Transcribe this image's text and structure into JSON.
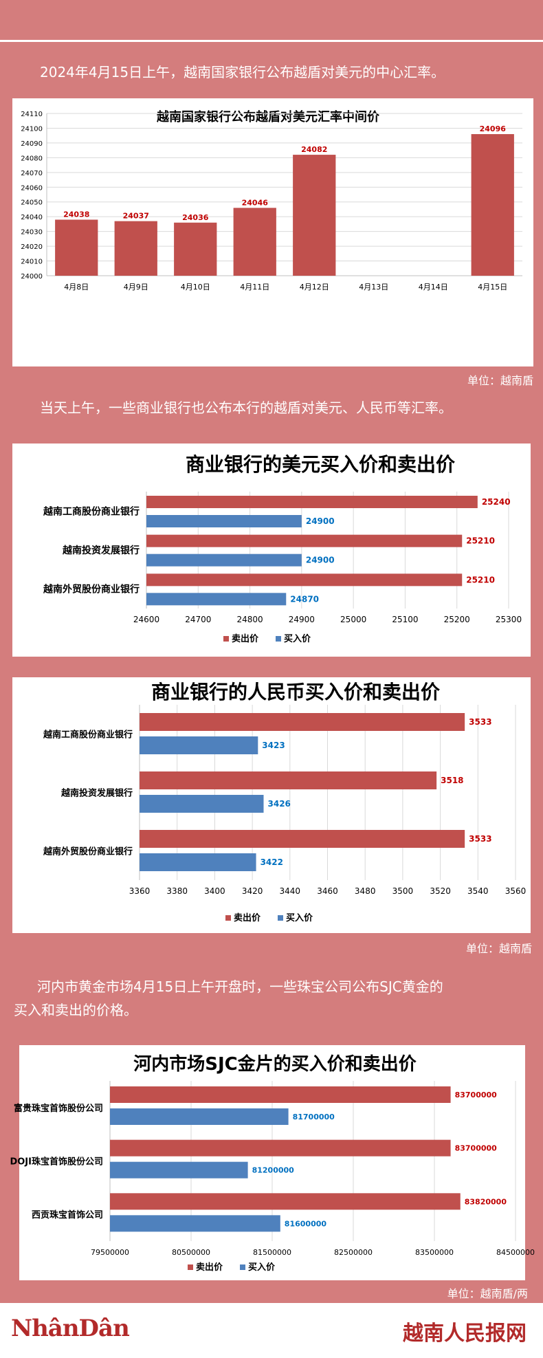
{
  "texts": {
    "intro": "2024年4月15日上午，越南国家银行公布越盾对美元的中心汇率。",
    "para2": "当天上午，一些商业银行也公布本行的越盾对美元、人民币等汇率。",
    "para3_line1": "河内市黄金市场4月15日上午开盘时，一些珠宝公司公布SJC黄金的",
    "para3_line2": "买入和卖出的价格。",
    "unit1": "单位：越南盾",
    "unit2": "单位：越南盾",
    "unit3": "单位：越南盾/两",
    "logo_left": "NhânDân",
    "logo_right": "越南人民报网"
  },
  "colors": {
    "sell": "#c0504d",
    "buy": "#4f81bd",
    "background": "#d47d7d",
    "sell_label": "#c00000",
    "buy_label": "#0070c0"
  },
  "chart_data": [
    {
      "type": "bar",
      "title": "越南国家银行公布越盾对美元汇率中间价",
      "categories": [
        "4月8日",
        "4月9日",
        "4月10日",
        "4月11日",
        "4月12日",
        "4月13日",
        "4月14日",
        "4月15日"
      ],
      "values": [
        24038,
        24037,
        24036,
        24046,
        24082,
        null,
        null,
        24096
      ],
      "ylim": [
        24000,
        24110
      ],
      "yticks": [
        24000,
        24010,
        24020,
        24030,
        24040,
        24050,
        24060,
        24070,
        24080,
        24090,
        24100,
        24110
      ],
      "grid": true
    },
    {
      "type": "bar",
      "orientation": "horizontal",
      "title": "商业银行的美元买入价和卖出价",
      "categories": [
        "越南工商股份商业银行",
        "越南投资发展银行",
        "越南外贸股份商业银行"
      ],
      "series": [
        {
          "name": "卖出价",
          "values": [
            25240,
            25210,
            25210
          ]
        },
        {
          "name": "买入价",
          "values": [
            24900,
            24900,
            24870
          ]
        }
      ],
      "xlim": [
        24600,
        25300
      ],
      "xticks": [
        24600,
        24700,
        24800,
        24900,
        25000,
        25100,
        25200,
        25300
      ],
      "grid": true,
      "legend": "bottom"
    },
    {
      "type": "bar",
      "orientation": "horizontal",
      "title": "商业银行的人民币买入价和卖出价",
      "categories": [
        "越南工商股份商业银行",
        "越南投资发展银行",
        "越南外贸股份商业银行"
      ],
      "series": [
        {
          "name": "卖出价",
          "values": [
            3533,
            3518,
            3533
          ]
        },
        {
          "name": "买入价",
          "values": [
            3423,
            3426,
            3422
          ]
        }
      ],
      "xlim": [
        3360,
        3560
      ],
      "xticks": [
        3360,
        3380,
        3400,
        3420,
        3440,
        3460,
        3480,
        3500,
        3520,
        3540,
        3560
      ],
      "grid": true,
      "legend": "bottom"
    },
    {
      "type": "bar",
      "orientation": "horizontal",
      "title": "河内市场SJC金片的买入价和卖出价",
      "categories": [
        "富贵珠宝首饰股份公司",
        "DOJI珠宝首饰股份公司",
        "西贡珠宝首饰公司"
      ],
      "series": [
        {
          "name": "卖出价",
          "values": [
            83700000,
            83700000,
            83820000
          ]
        },
        {
          "name": "买入价",
          "values": [
            81700000,
            81200000,
            81600000
          ]
        }
      ],
      "xlim": [
        79500000,
        84500000
      ],
      "xticks": [
        79500000,
        80500000,
        81500000,
        82500000,
        83500000,
        84500000
      ],
      "grid": true,
      "legend": "bottom"
    }
  ]
}
